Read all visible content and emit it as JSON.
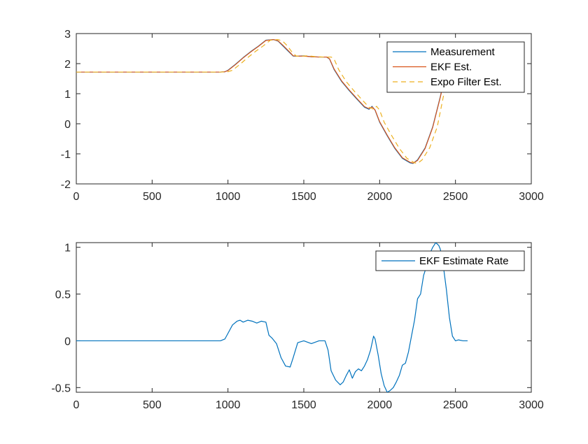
{
  "chart_data": [
    {
      "type": "line",
      "title": "",
      "xlabel": "",
      "ylabel": "",
      "xlim": [
        0,
        3000
      ],
      "ylim": [
        -2,
        3
      ],
      "xticks": [
        "0",
        "500",
        "1000",
        "1500",
        "2000",
        "2500",
        "3000"
      ],
      "yticks": [
        "-2",
        "-1",
        "0",
        "1",
        "2",
        "3"
      ],
      "grid": false,
      "legend_position": "top-right",
      "series": [
        {
          "name": "Measurement",
          "color": "#0072BD",
          "style": "solid",
          "x": [
            0,
            200,
            400,
            600,
            800,
            950,
            980,
            1000,
            1050,
            1100,
            1150,
            1200,
            1250,
            1300,
            1330,
            1360,
            1400,
            1430,
            1460,
            1500,
            1550,
            1600,
            1650,
            1670,
            1700,
            1750,
            1800,
            1850,
            1900,
            1930,
            1950,
            1970,
            2000,
            2050,
            2100,
            2150,
            2200,
            2220,
            2250,
            2300,
            2350,
            2400,
            2420
          ],
          "y": [
            1.72,
            1.72,
            1.72,
            1.72,
            1.72,
            1.72,
            1.73,
            1.78,
            1.98,
            2.2,
            2.4,
            2.58,
            2.78,
            2.8,
            2.75,
            2.6,
            2.4,
            2.25,
            2.25,
            2.26,
            2.23,
            2.22,
            2.22,
            2.15,
            1.8,
            1.4,
            1.1,
            0.82,
            0.55,
            0.48,
            0.58,
            0.45,
            0.05,
            -0.4,
            -0.82,
            -1.15,
            -1.3,
            -1.32,
            -1.2,
            -0.8,
            -0.1,
            0.9,
            1.35
          ]
        },
        {
          "name": "EKF Est.",
          "color": "#D95319",
          "style": "solid",
          "x": [
            0,
            200,
            400,
            600,
            800,
            950,
            980,
            1000,
            1050,
            1100,
            1150,
            1200,
            1250,
            1300,
            1330,
            1360,
            1400,
            1430,
            1460,
            1500,
            1550,
            1600,
            1650,
            1670,
            1700,
            1750,
            1800,
            1850,
            1900,
            1930,
            1950,
            1970,
            2000,
            2050,
            2100,
            2150,
            2200,
            2220,
            2250,
            2300,
            2350,
            2400,
            2420
          ],
          "y": [
            1.72,
            1.72,
            1.72,
            1.72,
            1.72,
            1.72,
            1.73,
            1.77,
            1.97,
            2.19,
            2.39,
            2.57,
            2.77,
            2.8,
            2.76,
            2.62,
            2.42,
            2.26,
            2.25,
            2.25,
            2.23,
            2.22,
            2.22,
            2.16,
            1.82,
            1.42,
            1.12,
            0.84,
            0.57,
            0.5,
            0.56,
            0.46,
            0.07,
            -0.38,
            -0.8,
            -1.13,
            -1.28,
            -1.31,
            -1.22,
            -0.82,
            -0.12,
            0.88,
            1.33
          ]
        },
        {
          "name": "Expo Filter Est.",
          "color": "#EDB120",
          "style": "dashed",
          "x": [
            0,
            200,
            400,
            600,
            800,
            950,
            1000,
            1030,
            1080,
            1130,
            1180,
            1230,
            1280,
            1330,
            1360,
            1390,
            1420,
            1450,
            1480,
            1530,
            1580,
            1630,
            1680,
            1700,
            1730,
            1780,
            1830,
            1880,
            1930,
            1960,
            1980,
            2000,
            2030,
            2080,
            2130,
            2180,
            2230,
            2250,
            2280,
            2330,
            2380,
            2420,
            2440
          ],
          "y": [
            1.72,
            1.72,
            1.72,
            1.72,
            1.72,
            1.72,
            1.73,
            1.78,
            1.98,
            2.2,
            2.4,
            2.58,
            2.78,
            2.8,
            2.75,
            2.6,
            2.4,
            2.25,
            2.25,
            2.26,
            2.23,
            2.22,
            2.22,
            2.15,
            1.8,
            1.4,
            1.1,
            0.82,
            0.55,
            0.48,
            0.58,
            0.45,
            0.05,
            -0.4,
            -0.82,
            -1.15,
            -1.3,
            -1.32,
            -1.2,
            -0.8,
            -0.1,
            0.9,
            1.35
          ]
        }
      ]
    },
    {
      "type": "line",
      "title": "",
      "xlabel": "",
      "ylabel": "",
      "xlim": [
        0,
        3000
      ],
      "ylim": [
        -0.55,
        1.05
      ],
      "xticks": [
        "0",
        "500",
        "1000",
        "1500",
        "2000",
        "2500",
        "3000"
      ],
      "yticks": [
        "-0.5",
        "0",
        "0.5",
        "1"
      ],
      "grid": false,
      "legend_position": "top-right",
      "series": [
        {
          "name": "EKF Estimate Rate",
          "color": "#0072BD",
          "style": "solid",
          "x": [
            0,
            100,
            200,
            300,
            400,
            500,
            600,
            700,
            800,
            900,
            950,
            980,
            1000,
            1030,
            1060,
            1080,
            1100,
            1130,
            1160,
            1190,
            1220,
            1250,
            1270,
            1290,
            1320,
            1350,
            1380,
            1410,
            1430,
            1460,
            1500,
            1550,
            1600,
            1640,
            1660,
            1680,
            1710,
            1740,
            1760,
            1780,
            1800,
            1820,
            1840,
            1860,
            1880,
            1900,
            1920,
            1940,
            1960,
            1970,
            1990,
            2010,
            2030,
            2050,
            2070,
            2090,
            2110,
            2130,
            2150,
            2170,
            2190,
            2210,
            2230,
            2250,
            2270,
            2290,
            2310,
            2330,
            2350,
            2370,
            2390,
            2400,
            2420,
            2440,
            2460,
            2480,
            2500,
            2520,
            2550,
            2580
          ],
          "y": [
            0.0,
            0.0,
            0.0,
            0.0,
            0.0,
            0.0,
            0.0,
            0.0,
            0.0,
            0.0,
            0.0,
            0.02,
            0.08,
            0.17,
            0.21,
            0.22,
            0.2,
            0.22,
            0.21,
            0.19,
            0.21,
            0.2,
            0.06,
            0.03,
            -0.03,
            -0.18,
            -0.27,
            -0.28,
            -0.18,
            -0.02,
            0.0,
            -0.03,
            0.0,
            0.0,
            -0.1,
            -0.32,
            -0.42,
            -0.47,
            -0.44,
            -0.37,
            -0.31,
            -0.4,
            -0.33,
            -0.3,
            -0.32,
            -0.27,
            -0.2,
            -0.1,
            0.05,
            0.02,
            -0.15,
            -0.35,
            -0.48,
            -0.55,
            -0.53,
            -0.5,
            -0.44,
            -0.37,
            -0.26,
            -0.24,
            -0.12,
            0.05,
            0.22,
            0.45,
            0.5,
            0.7,
            0.8,
            0.93,
            1.0,
            1.05,
            1.02,
            0.98,
            0.8,
            0.55,
            0.25,
            0.05,
            0.0,
            0.01,
            0.0,
            0.0
          ]
        }
      ]
    }
  ]
}
